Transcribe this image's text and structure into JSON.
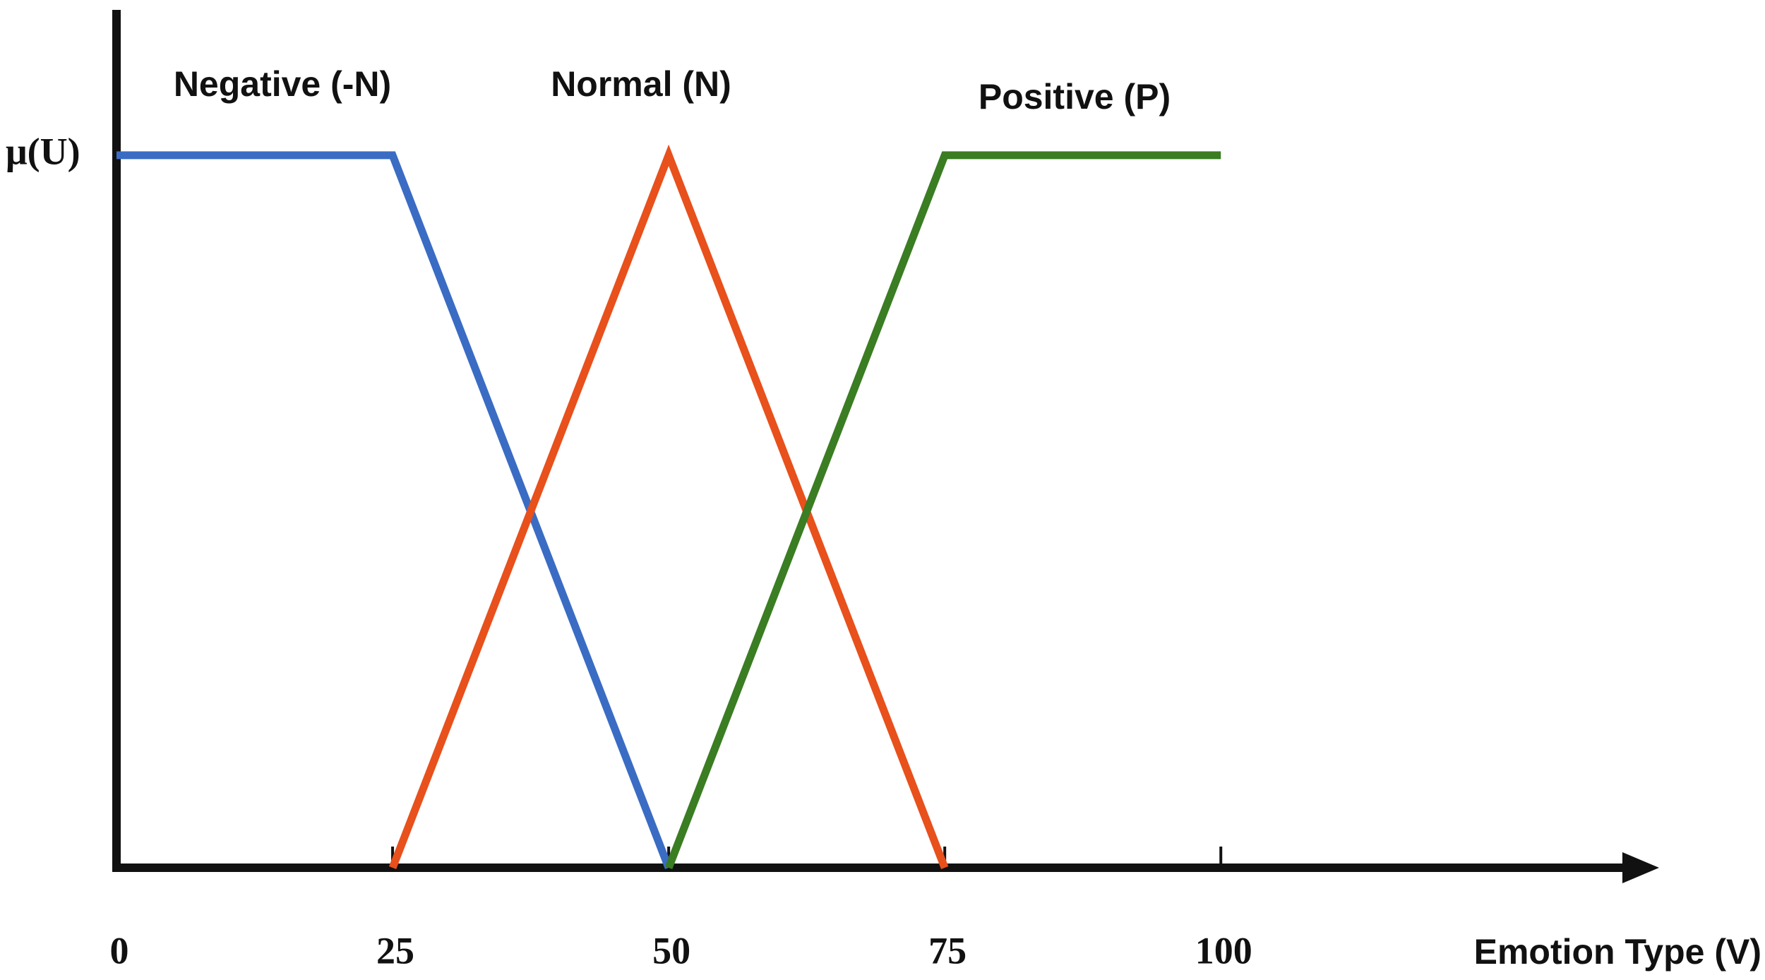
{
  "chart_data": {
    "type": "line",
    "y_label": "μ(U)",
    "x_label": "Emotion Type (V)",
    "xlim": [
      0,
      137
    ],
    "xticks": [
      0,
      25,
      50,
      75,
      100
    ],
    "ylim": [
      0,
      1.2
    ],
    "series": [
      {
        "name": "Negative (-N)",
        "color": "#3a6cc4",
        "x": [
          0,
          25,
          50
        ],
        "values": [
          1,
          1,
          0
        ]
      },
      {
        "name": "Normal (N)",
        "color": "#e8501c",
        "x": [
          25,
          50,
          75
        ],
        "values": [
          0,
          1,
          0
        ]
      },
      {
        "name": "Positive (P)",
        "color": "#3a7d22",
        "x": [
          50,
          75,
          100
        ],
        "values": [
          0,
          1,
          1
        ]
      }
    ]
  }
}
